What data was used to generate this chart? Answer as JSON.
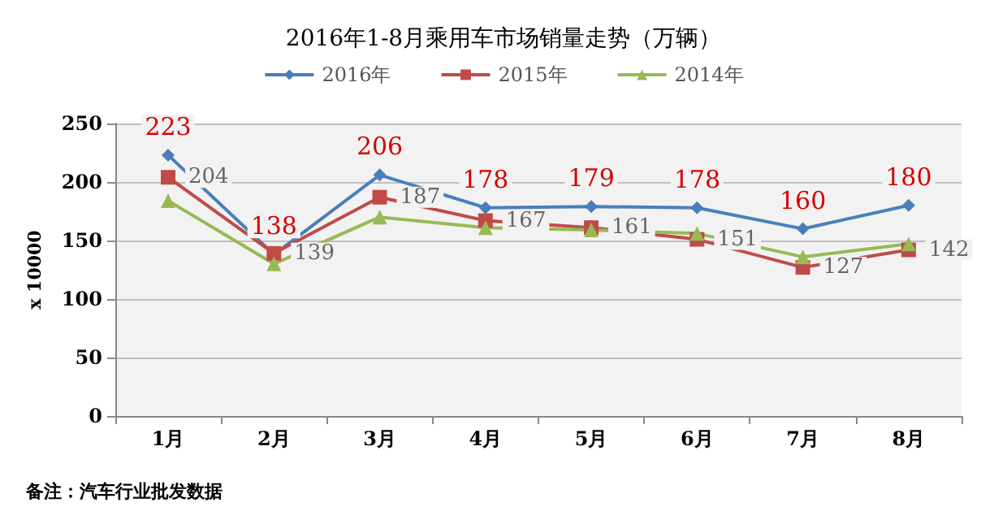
{
  "chart_data": {
    "type": "line",
    "title": "2016年1-8月乘用车市场销量走势（万辆）",
    "ylabel": "x 10000",
    "categories": [
      "1月",
      "2月",
      "3月",
      "4月",
      "5月",
      "6月",
      "7月",
      "8月"
    ],
    "series": [
      {
        "name": "2016年",
        "color": "#4a7ebb",
        "marker": "diamond",
        "values": [
          223,
          138,
          206,
          178,
          179,
          178,
          160,
          180
        ],
        "value_labels": [
          "223",
          "138",
          "206",
          "178",
          "179",
          "178",
          "160",
          "180"
        ]
      },
      {
        "name": "2015年",
        "color": "#be4b48",
        "marker": "square",
        "values": [
          204,
          139,
          187,
          167,
          161,
          151,
          127,
          142
        ],
        "value_labels": [
          "204",
          "139",
          "187",
          "167",
          "161",
          "151",
          "127",
          "142"
        ]
      },
      {
        "name": "2014年",
        "color": "#98b954",
        "marker": "triangle",
        "values": [
          184,
          130,
          170,
          161,
          159,
          156,
          136,
          147
        ]
      }
    ],
    "ylim": [
      0,
      250
    ],
    "yticks": [
      0,
      50,
      100,
      150,
      200,
      250
    ],
    "grid": "y",
    "legend": "top",
    "annotations": [
      "备注：汽车行业批发数据"
    ]
  }
}
